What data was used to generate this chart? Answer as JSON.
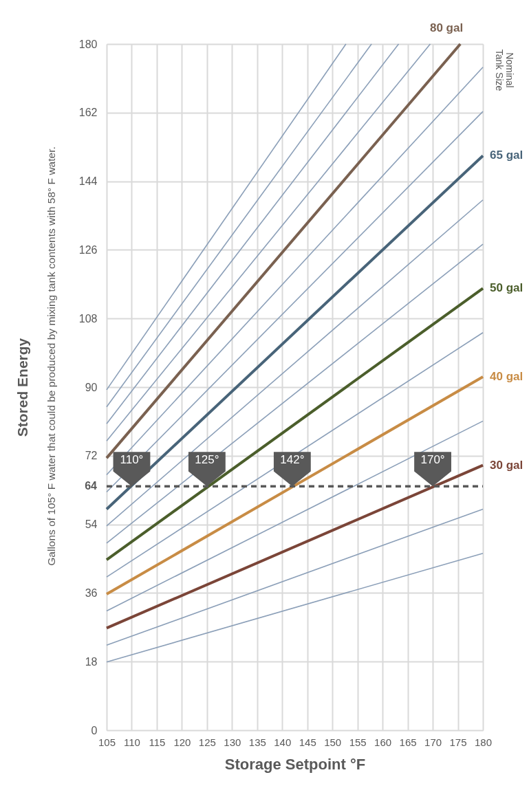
{
  "chart_data": {
    "type": "line",
    "xlabel": "Storage Setpoint °F",
    "ylabel": "Stored Energy",
    "xlim": [
      105,
      180
    ],
    "ylim": [
      0,
      180
    ],
    "xticks": [
      105,
      110,
      115,
      120,
      125,
      130,
      135,
      140,
      145,
      150,
      155,
      160,
      165,
      170,
      175,
      180
    ],
    "yticks": [
      0,
      18,
      36,
      54,
      72,
      90,
      108,
      126,
      144,
      162,
      180
    ],
    "grid": true,
    "line_style": "solid",
    "marker": "none",
    "series": [
      {
        "color": "#8b9fb8",
        "x": [
          105,
          180
        ],
        "values": [
          17.9,
          46.4
        ]
      },
      {
        "color": "#8b9fb8",
        "x": [
          105,
          180
        ],
        "values": [
          22.3,
          58.0
        ]
      },
      {
        "name": "30 gal",
        "color": "#7b4538",
        "x": [
          105,
          180
        ],
        "values": [
          26.8,
          69.5
        ]
      },
      {
        "color": "#8b9fb8",
        "x": [
          105,
          180
        ],
        "values": [
          31.3,
          81.1
        ]
      },
      {
        "name": "40 gal",
        "color": "#c88c45",
        "x": [
          105,
          180
        ],
        "values": [
          35.7,
          92.7
        ]
      },
      {
        "color": "#8b9fb8",
        "x": [
          105,
          180
        ],
        "values": [
          40.2,
          104.3
        ]
      },
      {
        "name": "50 gal",
        "color": "#4b5e2b",
        "x": [
          105,
          180
        ],
        "values": [
          44.7,
          115.9
        ]
      },
      {
        "color": "#8b9fb8",
        "x": [
          105,
          180
        ],
        "values": [
          49.1,
          127.5
        ]
      },
      {
        "color": "#8b9fb8",
        "x": [
          105,
          180
        ],
        "values": [
          53.6,
          139.1
        ]
      },
      {
        "name": "65 gal",
        "color": "#486479",
        "x": [
          105,
          180
        ],
        "values": [
          58.0,
          150.7
        ]
      },
      {
        "color": "#8b9fb8",
        "x": [
          105,
          180
        ],
        "values": [
          62.5,
          162.3
        ]
      },
      {
        "color": "#8b9fb8",
        "x": [
          105,
          180
        ],
        "values": [
          67.0,
          173.9
        ]
      },
      {
        "name": "80 gal",
        "color": "#7a6150",
        "x": [
          105,
          175.5
        ],
        "values": [
          71.4,
          180
        ]
      },
      {
        "color": "#8b9fb8",
        "x": [
          105,
          169.5
        ],
        "values": [
          75.9,
          180
        ]
      },
      {
        "color": "#8b9fb8",
        "x": [
          105,
          163.2
        ],
        "values": [
          80.4,
          180
        ]
      },
      {
        "color": "#8b9fb8",
        "x": [
          105,
          157.8
        ],
        "values": [
          84.8,
          180
        ]
      },
      {
        "color": "#8b9fb8",
        "x": [
          105,
          152.7
        ],
        "values": [
          89.3,
          180
        ]
      }
    ],
    "ref_lines": [
      {
        "axis": "y",
        "value": 64,
        "label": "64",
        "color": "#595959",
        "line_style": "dashed"
      }
    ],
    "annotations": [
      "Gallons of 105° F water that could be produced by mixing tank contents with 58° F water.",
      "Nominal Tank Size",
      {
        "text": "110°",
        "x": 110,
        "y": 64
      },
      {
        "text": "125°",
        "x": 125,
        "y": 64
      },
      {
        "text": "142°",
        "x": 142,
        "y": 64
      },
      {
        "text": "170°",
        "x": 170,
        "y": 64
      }
    ]
  }
}
